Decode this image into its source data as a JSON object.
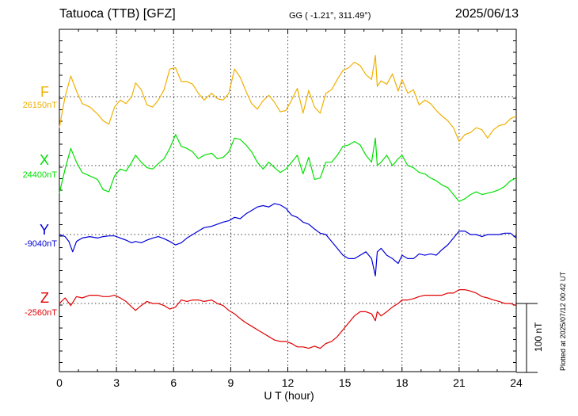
{
  "header": {
    "station": "Tatuoca (TTB)  [GFZ]",
    "coords": "GG ( -1.21°, 311.49°)",
    "date": "2025/06/13"
  },
  "footer_note": "Plotted at 2025/07/12 00:42 UT",
  "scale_label": "100 nT",
  "colors": {
    "F": "#f0b000",
    "X": "#00e000",
    "Y": "#0000d8",
    "Z": "#e00000"
  },
  "chart_data": {
    "type": "line",
    "title": "Tatuoca (TTB)  [GFZ]",
    "xlabel": "U T (hour)",
    "ylabel": "",
    "xlim": [
      0,
      24
    ],
    "x_ticks": [
      "0",
      "3",
      "6",
      "9",
      "12",
      "15",
      "18",
      "21",
      "24"
    ],
    "grid": true,
    "scale_bar_nT": 100,
    "series": [
      {
        "name": "F",
        "baseline_label": "26150nT",
        "color": "#f0b000",
        "x": [
          0,
          0.3,
          0.6,
          0.9,
          1.2,
          1.6,
          2.0,
          2.3,
          2.6,
          2.9,
          3.2,
          3.5,
          3.8,
          4.0,
          4.3,
          4.6,
          4.9,
          5.2,
          5.5,
          5.8,
          6.1,
          6.4,
          6.7,
          7.0,
          7.3,
          7.6,
          8.0,
          8.3,
          8.6,
          8.9,
          9.2,
          9.5,
          9.8,
          10.1,
          10.4,
          10.7,
          11.0,
          11.3,
          11.6,
          11.9,
          12.2,
          12.5,
          12.8,
          13.1,
          13.4,
          13.7,
          14.0,
          14.3,
          14.6,
          14.9,
          15.2,
          15.5,
          15.8,
          16.1,
          16.4,
          16.6,
          16.7,
          16.9,
          17.2,
          17.5,
          17.8,
          18.0,
          18.3,
          18.6,
          18.9,
          19.2,
          19.5,
          19.8,
          20.1,
          20.4,
          20.7,
          21.0,
          21.3,
          21.6,
          21.9,
          22.2,
          22.5,
          22.8,
          23.1,
          23.4,
          23.7,
          24.0
        ],
        "y": [
          -45,
          0,
          30,
          8,
          -10,
          -15,
          -25,
          -35,
          -40,
          -15,
          -5,
          -10,
          0,
          20,
          10,
          -12,
          -15,
          -5,
          10,
          40,
          42,
          22,
          22,
          18,
          5,
          -5,
          5,
          -3,
          -5,
          5,
          40,
          28,
          8,
          -10,
          -18,
          -6,
          2,
          -8,
          -22,
          -20,
          -5,
          12,
          -24,
          9,
          -15,
          -24,
          5,
          10,
          25,
          38,
          42,
          50,
          45,
          32,
          25,
          60,
          15,
          23,
          18,
          33,
          8,
          25,
          5,
          10,
          -12,
          -5,
          -10,
          -20,
          -28,
          -35,
          -45,
          -65,
          -55,
          -52,
          -45,
          -48,
          -60,
          -48,
          -42,
          -40,
          -32,
          -28
        ]
      },
      {
        "name": "X",
        "baseline_label": "24400nT",
        "color": "#00e000",
        "x": [
          0,
          0.3,
          0.6,
          0.9,
          1.2,
          1.6,
          2.0,
          2.3,
          2.6,
          2.9,
          3.2,
          3.5,
          3.8,
          4.0,
          4.3,
          4.6,
          4.9,
          5.2,
          5.5,
          5.8,
          6.1,
          6.4,
          6.7,
          7.0,
          7.3,
          7.6,
          8.0,
          8.3,
          8.6,
          8.9,
          9.2,
          9.5,
          9.8,
          10.1,
          10.4,
          10.7,
          11.0,
          11.3,
          11.6,
          11.9,
          12.2,
          12.5,
          12.8,
          13.1,
          13.4,
          13.7,
          14.0,
          14.3,
          14.6,
          14.9,
          15.2,
          15.5,
          15.8,
          16.1,
          16.4,
          16.6,
          16.7,
          16.9,
          17.2,
          17.5,
          17.8,
          18.0,
          18.3,
          18.6,
          18.9,
          19.2,
          19.5,
          19.8,
          20.1,
          20.4,
          20.7,
          21.0,
          21.3,
          21.6,
          21.9,
          22.2,
          22.5,
          22.8,
          23.1,
          23.4,
          23.7,
          24.0
        ],
        "y": [
          -40,
          -5,
          25,
          5,
          -10,
          -15,
          -20,
          -35,
          -38,
          -15,
          -5,
          -8,
          5,
          15,
          5,
          -3,
          -5,
          3,
          10,
          25,
          45,
          28,
          25,
          20,
          10,
          15,
          18,
          10,
          12,
          20,
          40,
          38,
          30,
          20,
          5,
          -5,
          5,
          -3,
          -10,
          -5,
          5,
          15,
          -12,
          12,
          -20,
          -18,
          5,
          5,
          15,
          28,
          30,
          35,
          30,
          15,
          5,
          40,
          0,
          5,
          15,
          0,
          10,
          15,
          0,
          -3,
          -10,
          -12,
          -18,
          -22,
          -28,
          -32,
          -42,
          -52,
          -48,
          -42,
          -38,
          -42,
          -40,
          -38,
          -35,
          -30,
          -22,
          -18
        ]
      },
      {
        "name": "Y",
        "baseline_label": "-9040nT",
        "color": "#0000d8",
        "x": [
          0,
          0.3,
          0.5,
          0.7,
          0.9,
          1.2,
          1.6,
          2.0,
          2.3,
          2.6,
          2.9,
          3.2,
          3.5,
          3.8,
          4.0,
          4.3,
          4.6,
          4.9,
          5.2,
          5.5,
          5.8,
          6.1,
          6.4,
          6.7,
          7.0,
          7.3,
          7.6,
          8.0,
          8.3,
          8.6,
          8.9,
          9.2,
          9.5,
          9.8,
          10.1,
          10.4,
          10.7,
          11.0,
          11.3,
          11.6,
          11.9,
          12.2,
          12.5,
          12.8,
          13.1,
          13.4,
          13.7,
          14.0,
          14.3,
          14.6,
          14.9,
          15.2,
          15.5,
          15.8,
          16.1,
          16.4,
          16.6,
          16.7,
          16.9,
          17.2,
          17.5,
          17.8,
          18.0,
          18.3,
          18.6,
          18.9,
          19.2,
          19.5,
          19.8,
          20.1,
          20.4,
          20.7,
          21.0,
          21.3,
          21.6,
          21.9,
          22.2,
          22.5,
          22.8,
          23.1,
          23.4,
          23.7,
          24.0
        ],
        "y": [
          0,
          -3,
          -10,
          -25,
          -10,
          -5,
          -3,
          -5,
          -3,
          -2,
          -2,
          -5,
          -8,
          -12,
          -10,
          -12,
          -8,
          -5,
          -3,
          -6,
          -10,
          -15,
          -12,
          -5,
          0,
          5,
          10,
          12,
          15,
          18,
          20,
          25,
          23,
          30,
          35,
          40,
          42,
          40,
          45,
          43,
          38,
          28,
          25,
          18,
          15,
          8,
          2,
          0,
          -10,
          -20,
          -30,
          -35,
          -35,
          -30,
          -25,
          -35,
          -60,
          -25,
          -20,
          -30,
          -35,
          -42,
          -30,
          -35,
          -35,
          -28,
          -30,
          -28,
          -30,
          -22,
          -15,
          -5,
          5,
          5,
          0,
          0,
          -3,
          0,
          0,
          0,
          2,
          2,
          -5
        ]
      },
      {
        "name": "Z",
        "baseline_label": "-2560nT",
        "color": "#e00000",
        "x": [
          0,
          0.3,
          0.6,
          0.9,
          1.2,
          1.6,
          2.0,
          2.3,
          2.6,
          2.9,
          3.2,
          3.5,
          3.8,
          4.0,
          4.3,
          4.6,
          4.9,
          5.2,
          5.5,
          5.8,
          6.1,
          6.4,
          6.7,
          7.0,
          7.3,
          7.6,
          8.0,
          8.3,
          8.6,
          8.9,
          9.2,
          9.5,
          9.8,
          10.1,
          10.4,
          10.7,
          11.0,
          11.3,
          11.6,
          11.9,
          12.2,
          12.5,
          12.8,
          13.1,
          13.4,
          13.7,
          14.0,
          14.3,
          14.6,
          14.9,
          15.2,
          15.5,
          15.8,
          16.1,
          16.4,
          16.6,
          16.7,
          16.9,
          17.2,
          17.5,
          17.8,
          18.0,
          18.3,
          18.6,
          18.9,
          19.2,
          19.5,
          19.8,
          20.1,
          20.4,
          20.7,
          21.0,
          21.3,
          21.6,
          21.9,
          22.2,
          22.5,
          22.8,
          23.1,
          23.4,
          23.7,
          24.0
        ],
        "y": [
          0,
          8,
          -3,
          10,
          8,
          12,
          12,
          10,
          10,
          12,
          8,
          3,
          -5,
          -10,
          -3,
          3,
          0,
          0,
          -3,
          -8,
          -5,
          5,
          3,
          5,
          5,
          3,
          5,
          0,
          -3,
          -10,
          -15,
          -22,
          -28,
          -33,
          -38,
          -43,
          -48,
          -53,
          -55,
          -55,
          -58,
          -63,
          -63,
          -65,
          -62,
          -65,
          -58,
          -55,
          -48,
          -38,
          -28,
          -18,
          -12,
          -12,
          -15,
          -25,
          -12,
          -18,
          -12,
          -5,
          0,
          5,
          5,
          7,
          10,
          12,
          12,
          12,
          12,
          15,
          15,
          20,
          20,
          18,
          15,
          10,
          8,
          5,
          3,
          0,
          0,
          -3
        ]
      }
    ]
  }
}
